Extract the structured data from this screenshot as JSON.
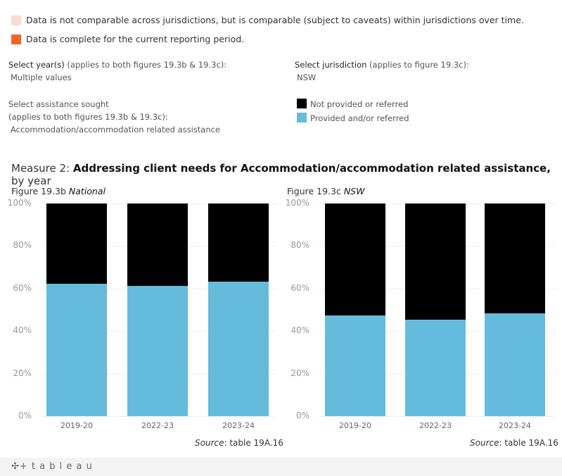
{
  "legend_top": [
    {
      "label": "Data is not comparable across jurisdictions, but is comparable (subject to caveats) within jurisdictions over time.",
      "color": "#fcdbcf"
    },
    {
      "label": "Data is complete for the current reporting period.",
      "color": "#f26524"
    }
  ],
  "filters": {
    "year_label": "Select year(s)",
    "year_note": " (applies to both figures 19.3b & 19.3c):",
    "year_value": "Multiple values",
    "assist_label": "Select assistance sought",
    "assist_note": "(applies to both figures 19.3b & 19.3c):",
    "assist_value": "Accommodation/accommodation related assistance",
    "juris_label": "Select jurisdiction",
    "juris_note": " (applies to figure 19.3c):",
    "juris_value": "NSW"
  },
  "series_legend": [
    {
      "label": "Not provided or referred",
      "color": "#000000"
    },
    {
      "label": "Provided and/or referred",
      "color": "#65bbdb"
    }
  ],
  "measure": {
    "prefix": "Measure 2: ",
    "bold": "Addressing client needs for Accommodation/accommodation related assistance,",
    "suffix": " by year"
  },
  "footer": {
    "logo": "+ t a b l e a u"
  },
  "chart_data": [
    {
      "type": "bar",
      "stacked": true,
      "title_prefix": "Figure 19.3b ",
      "title_italic": "National",
      "categories": [
        "2019-20",
        "2022-23",
        "2023-24"
      ],
      "series": [
        {
          "name": "Provided and/or referred",
          "values": [
            62.3,
            61.3,
            63.3
          ]
        },
        {
          "name": "Not provided or referred",
          "values": [
            37.7,
            38.7,
            36.7
          ]
        }
      ],
      "yticks": [
        "0%",
        "20%",
        "40%",
        "60%",
        "80%",
        "100%"
      ],
      "ylim": [
        0,
        100
      ],
      "grid": true,
      "source_label": "Source",
      "source_text": ": table 19A.16"
    },
    {
      "type": "bar",
      "stacked": true,
      "title_prefix": "Figure 19.3c  ",
      "title_italic": "NSW",
      "categories": [
        "2019-20",
        "2022-23",
        "2023-24"
      ],
      "series": [
        {
          "name": "Provided and/or referred",
          "values": [
            47.4,
            45.5,
            48.4
          ]
        },
        {
          "name": "Not provided or referred",
          "values": [
            52.6,
            54.5,
            51.6
          ]
        }
      ],
      "yticks": [
        "0%",
        "20%",
        "40%",
        "60%",
        "80%",
        "100%"
      ],
      "ylim": [
        0,
        100
      ],
      "grid": true,
      "source_label": "Source",
      "source_text": ": table 19A.16"
    }
  ]
}
